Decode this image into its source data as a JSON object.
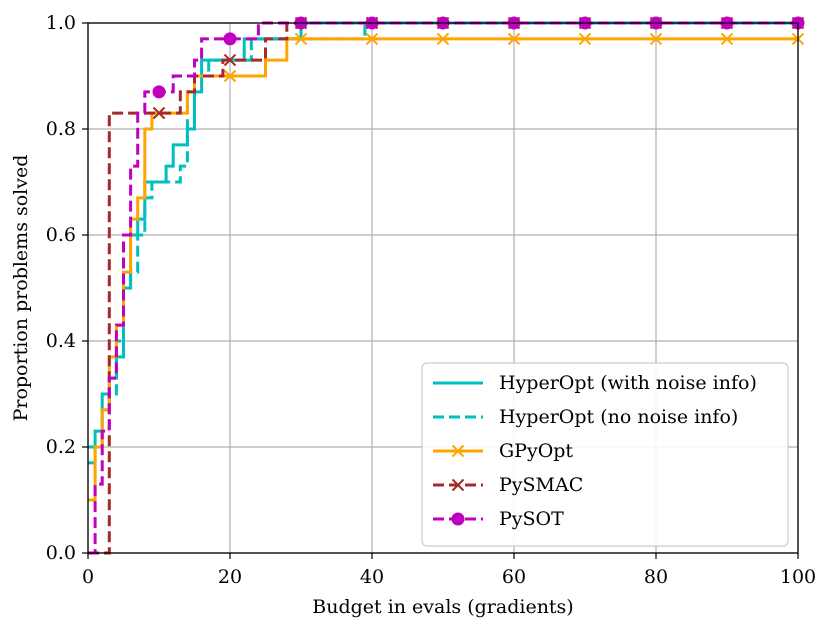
{
  "chart_data": {
    "type": "line",
    "title": "",
    "xlabel": "Budget in evals (gradients)",
    "ylabel": "Proportion problems solved",
    "xlim": [
      0,
      100
    ],
    "ylim": [
      0,
      1
    ],
    "xticks": [
      0,
      20,
      40,
      60,
      80,
      100
    ],
    "yticks": [
      0.0,
      0.2,
      0.4,
      0.6,
      0.8,
      1.0
    ],
    "xtick_labels": [
      "0",
      "20",
      "40",
      "60",
      "80",
      "100"
    ],
    "ytick_labels": [
      "0.0",
      "0.2",
      "0.4",
      "0.6",
      "0.8",
      "1.0"
    ],
    "grid": true,
    "legend_position": "lower-right",
    "series": [
      {
        "name": "HyperOpt (with noise info)",
        "color": "#00bfbf",
        "dash": "solid",
        "marker": "none",
        "x": [
          0,
          1,
          2,
          3,
          4,
          5,
          6,
          7,
          8,
          9,
          10,
          11,
          12,
          13,
          14,
          15,
          16,
          17,
          18,
          19,
          20,
          21,
          22,
          23,
          24,
          25,
          26,
          27,
          28,
          29,
          30,
          40,
          50,
          60,
          70,
          80,
          90,
          100
        ],
        "y": [
          0.2,
          0.23,
          0.3,
          0.33,
          0.37,
          0.5,
          0.6,
          0.63,
          0.7,
          0.7,
          0.7,
          0.73,
          0.77,
          0.77,
          0.8,
          0.87,
          0.93,
          0.93,
          0.93,
          0.93,
          0.93,
          0.93,
          0.97,
          0.97,
          0.97,
          0.97,
          0.97,
          0.97,
          0.97,
          0.97,
          1.0,
          1.0,
          1.0,
          1.0,
          1.0,
          1.0,
          1.0,
          1.0
        ]
      },
      {
        "name": "HyperOpt (no noise info)",
        "color": "#00bfbf",
        "dash": "dashed",
        "marker": "none",
        "x": [
          0,
          1,
          2,
          3,
          4,
          5,
          6,
          7,
          8,
          9,
          10,
          11,
          12,
          13,
          14,
          15,
          16,
          17,
          18,
          19,
          20,
          21,
          22,
          23,
          24,
          25,
          26,
          27,
          28,
          29,
          30,
          37,
          38,
          39,
          40,
          50,
          60,
          70,
          80,
          90,
          100
        ],
        "y": [
          0.17,
          0.2,
          0.27,
          0.3,
          0.4,
          0.5,
          0.53,
          0.6,
          0.67,
          0.7,
          0.7,
          0.7,
          0.7,
          0.73,
          0.87,
          0.9,
          0.9,
          0.93,
          0.93,
          0.93,
          0.93,
          0.93,
          0.93,
          0.97,
          0.97,
          0.97,
          0.97,
          0.97,
          0.97,
          0.97,
          0.97,
          0.97,
          0.97,
          1.0,
          1.0,
          1.0,
          1.0,
          1.0,
          1.0,
          1.0,
          1.0
        ]
      },
      {
        "name": "GPyOpt",
        "color": "#ffa500",
        "dash": "solid",
        "marker": "x",
        "marker_x": [
          10,
          20,
          30,
          40,
          50,
          60,
          70,
          80,
          90,
          100
        ],
        "x": [
          0,
          1,
          2,
          3,
          4,
          5,
          6,
          7,
          8,
          9,
          10,
          11,
          12,
          13,
          14,
          15,
          16,
          17,
          18,
          19,
          20,
          21,
          22,
          23,
          24,
          25,
          26,
          27,
          28,
          29,
          30,
          40,
          50,
          60,
          70,
          80,
          90,
          100
        ],
        "y": [
          0.1,
          0.2,
          0.27,
          0.37,
          0.43,
          0.53,
          0.63,
          0.67,
          0.8,
          0.83,
          0.83,
          0.83,
          0.83,
          0.83,
          0.87,
          0.9,
          0.9,
          0.9,
          0.9,
          0.9,
          0.9,
          0.9,
          0.9,
          0.9,
          0.9,
          0.93,
          0.93,
          0.93,
          0.97,
          0.97,
          0.97,
          0.97,
          0.97,
          0.97,
          0.97,
          0.97,
          0.97,
          0.97
        ]
      },
      {
        "name": "PySMAC",
        "color": "#a52a2a",
        "dash": "dashed",
        "marker": "x",
        "marker_x": [
          10,
          20,
          30,
          40,
          50,
          60,
          70,
          80,
          90,
          100
        ],
        "x": [
          0,
          1,
          2,
          3,
          4,
          5,
          6,
          7,
          8,
          9,
          10,
          11,
          12,
          13,
          14,
          15,
          16,
          17,
          18,
          19,
          20,
          21,
          22,
          23,
          24,
          25,
          26,
          27,
          28,
          29,
          30,
          40,
          50,
          60,
          70,
          80,
          90,
          100
        ],
        "y": [
          0.0,
          0.0,
          0.0,
          0.83,
          0.83,
          0.83,
          0.83,
          0.83,
          0.83,
          0.83,
          0.83,
          0.83,
          0.83,
          0.87,
          0.87,
          0.9,
          0.9,
          0.9,
          0.9,
          0.93,
          0.93,
          0.93,
          0.93,
          0.93,
          0.93,
          0.97,
          0.97,
          0.97,
          1.0,
          1.0,
          1.0,
          1.0,
          1.0,
          1.0,
          1.0,
          1.0,
          1.0,
          1.0
        ]
      },
      {
        "name": "PySOT",
        "color": "#bf00bf",
        "dash": "dashed",
        "marker": "o",
        "marker_x": [
          10,
          20,
          30,
          40,
          50,
          60,
          70,
          80,
          90,
          100
        ],
        "x": [
          0,
          1,
          2,
          3,
          4,
          5,
          6,
          7,
          8,
          9,
          10,
          11,
          12,
          13,
          14,
          15,
          16,
          17,
          18,
          19,
          20,
          21,
          22,
          23,
          24,
          25,
          26,
          27,
          28,
          29,
          30,
          40,
          50,
          60,
          70,
          80,
          90,
          100
        ],
        "y": [
          0.0,
          0.13,
          0.23,
          0.33,
          0.43,
          0.6,
          0.73,
          0.83,
          0.87,
          0.87,
          0.87,
          0.87,
          0.9,
          0.9,
          0.9,
          0.93,
          0.97,
          0.97,
          0.97,
          0.97,
          0.97,
          0.97,
          0.97,
          0.97,
          1.0,
          1.0,
          1.0,
          1.0,
          1.0,
          1.0,
          1.0,
          1.0,
          1.0,
          1.0,
          1.0,
          1.0,
          1.0,
          1.0
        ]
      }
    ]
  }
}
